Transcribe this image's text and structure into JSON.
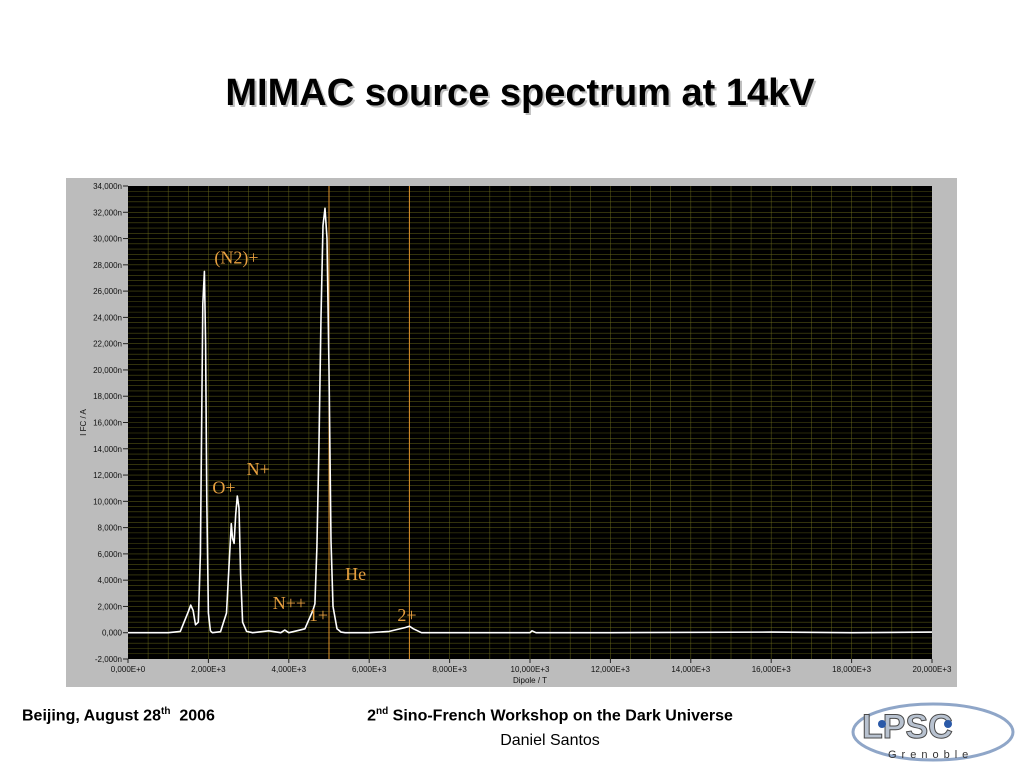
{
  "slide": {
    "title": "MIMAC source spectrum at 14kV",
    "footer_place_date": "Beijing,  August 28",
    "footer_date_sup": "th",
    "footer_year": "2006",
    "footer_workshop_ordinal": "2",
    "footer_workshop_sup": "nd",
    "footer_workshop_rest": " Sino-French Workshop on the Dark Universe",
    "footer_author": "Daniel Santos",
    "logo_text": "LPSC",
    "logo_subtext": "Grenoble"
  },
  "chart_data": {
    "type": "line",
    "xlabel": "Dipole / T",
    "ylabel": "I FC / A",
    "xlim": [
      0,
      20000
    ],
    "ylim": [
      -2000,
      34000
    ],
    "x_ticks": [
      0,
      2000,
      4000,
      6000,
      8000,
      10000,
      12000,
      14000,
      16000,
      18000,
      20000
    ],
    "x_tick_labels": [
      "0,000E+0",
      "2,000E+3",
      "4,000E+3",
      "6,000E+3",
      "8,000E+3",
      "10,000E+3",
      "12,000E+3",
      "14,000E+3",
      "16,000E+3",
      "18,000E+3",
      "20,000E+3"
    ],
    "y_ticks": [
      -2000,
      0,
      2000,
      4000,
      6000,
      8000,
      10000,
      12000,
      14000,
      16000,
      18000,
      20000,
      22000,
      24000,
      26000,
      28000,
      30000,
      32000,
      34000
    ],
    "y_tick_labels": [
      "-2,000n",
      "0,000",
      "2,000n",
      "4,000n",
      "6,000n",
      "8,000n",
      "10,000n",
      "12,000n",
      "14,000n",
      "16,000n",
      "18,000n",
      "20,000n",
      "22,000n",
      "24,000n",
      "26,000n",
      "28,000n",
      "30,000n",
      "32,000n",
      "34,000n"
    ],
    "grid": true,
    "background": "#000000",
    "grid_color": "#6b6b1c",
    "line_color": "#ffffff",
    "label_color": "#e8a040",
    "cursor_color": "#e0922c",
    "cursors_x": [
      5000,
      7000
    ],
    "series": [
      {
        "x": [
          0,
          1000,
          1300,
          1500,
          1560,
          1620,
          1680,
          1750,
          1800,
          1860,
          1900,
          1930,
          1960,
          2000,
          2050,
          2100,
          2300,
          2450,
          2520,
          2570,
          2600,
          2640,
          2680,
          2720,
          2760,
          2800,
          2850,
          2950,
          3100,
          3500,
          3800,
          3900,
          4000,
          4200,
          4400,
          4500,
          4600,
          4650,
          4700,
          4750,
          4800,
          4850,
          4900,
          4950,
          5000,
          5050,
          5100,
          5200,
          5300,
          5400,
          5500,
          6000,
          6500,
          6900,
          7000,
          7100,
          7300,
          8000,
          10000,
          10050,
          10150,
          12000,
          16000,
          18000,
          20000
        ],
        "y": [
          0,
          0,
          100,
          1600,
          2100,
          1700,
          600,
          800,
          6000,
          25000,
          27500,
          22000,
          10000,
          1500,
          150,
          0,
          80,
          1500,
          5500,
          8300,
          7200,
          6800,
          9000,
          10400,
          9500,
          4500,
          800,
          100,
          0,
          150,
          0,
          200,
          0,
          150,
          300,
          1000,
          1700,
          2200,
          6500,
          14000,
          24000,
          31000,
          32300,
          30000,
          20000,
          7000,
          2000,
          300,
          50,
          0,
          0,
          0,
          100,
          400,
          500,
          300,
          0,
          0,
          0,
          150,
          0,
          0,
          50,
          0,
          50
        ]
      }
    ],
    "annotations": [
      {
        "text": "(N2)+",
        "x": 2150,
        "y": 28100
      },
      {
        "text": "O+",
        "x": 2100,
        "y": 10600
      },
      {
        "text": "N+",
        "x": 2950,
        "y": 12000
      },
      {
        "text": "He",
        "x": 5400,
        "y": 4000
      },
      {
        "text": "N++",
        "x": 3600,
        "y": 1800
      },
      {
        "text": "1+",
        "x": 4500,
        "y": 900
      },
      {
        "text": "2+",
        "x": 6700,
        "y": 900
      }
    ]
  }
}
